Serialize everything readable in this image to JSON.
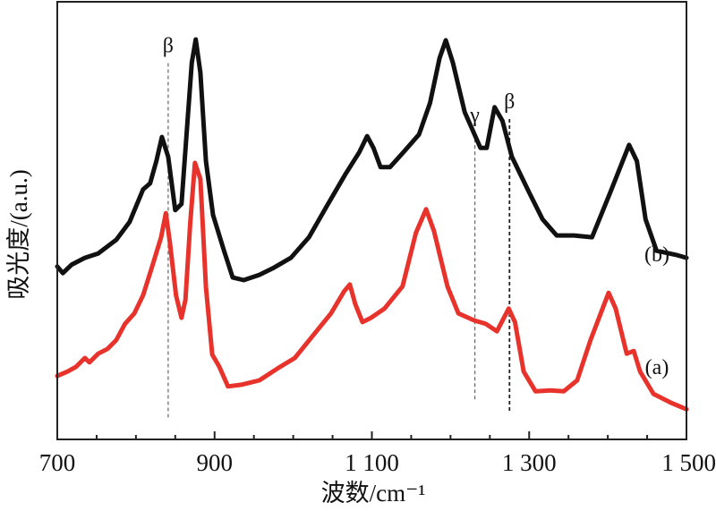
{
  "chart_data": {
    "type": "line",
    "title": "",
    "xlabel": "波数/cm⁻¹",
    "ylabel": "吸光度/(a.u.)",
    "xlim": [
      700,
      1500
    ],
    "ylim": [
      0,
      100
    ],
    "grid": false,
    "x_tick_labels": [
      {
        "value": 700,
        "label": "700"
      },
      {
        "value": 900,
        "label": "900"
      },
      {
        "value": 1100,
        "label": "1 100"
      },
      {
        "value": 1300,
        "label": "1 300"
      },
      {
        "value": 1500,
        "label": "1 500"
      }
    ],
    "x_minor_ticks": [
      750,
      800,
      850,
      950,
      1000,
      1050,
      1150,
      1200,
      1250,
      1350,
      1400,
      1450
    ],
    "series": [
      {
        "name": "(b)",
        "color": "#111111",
        "points": [
          [
            700,
            39.5
          ],
          [
            707,
            38.0
          ],
          [
            718,
            39.9
          ],
          [
            735,
            41.5
          ],
          [
            752,
            42.5
          ],
          [
            775,
            45.6
          ],
          [
            792,
            49.7
          ],
          [
            809,
            57.1
          ],
          [
            818,
            58.5
          ],
          [
            826,
            63.6
          ],
          [
            833,
            69.1
          ],
          [
            841,
            64.6
          ],
          [
            850,
            52.4
          ],
          [
            858,
            53.8
          ],
          [
            866,
            73.8
          ],
          [
            871,
            86.1
          ],
          [
            876,
            91.4
          ],
          [
            882,
            83.8
          ],
          [
            889,
            63.6
          ],
          [
            898,
            51.3
          ],
          [
            912,
            43.1
          ],
          [
            923,
            37.0
          ],
          [
            937,
            36.4
          ],
          [
            957,
            37.6
          ],
          [
            974,
            39.1
          ],
          [
            997,
            41.5
          ],
          [
            1020,
            46.2
          ],
          [
            1043,
            53.4
          ],
          [
            1066,
            60.5
          ],
          [
            1084,
            65.6
          ],
          [
            1094,
            69.3
          ],
          [
            1102,
            66.6
          ],
          [
            1111,
            62.2
          ],
          [
            1123,
            62.2
          ],
          [
            1140,
            65.6
          ],
          [
            1160,
            69.7
          ],
          [
            1174,
            76.9
          ],
          [
            1186,
            87.1
          ],
          [
            1194,
            91.2
          ],
          [
            1203,
            86.1
          ],
          [
            1218,
            74.8
          ],
          [
            1238,
            66.6
          ],
          [
            1246,
            66.6
          ],
          [
            1256,
            75.9
          ],
          [
            1266,
            72.8
          ],
          [
            1278,
            64.6
          ],
          [
            1300,
            56.4
          ],
          [
            1317,
            50.3
          ],
          [
            1335,
            46.6
          ],
          [
            1357,
            46.6
          ],
          [
            1380,
            46.2
          ],
          [
            1403,
            56.4
          ],
          [
            1427,
            67.3
          ],
          [
            1437,
            63.6
          ],
          [
            1448,
            50.3
          ],
          [
            1462,
            43.1
          ],
          [
            1488,
            42.1
          ],
          [
            1500,
            41.5
          ]
        ]
      },
      {
        "name": "(a)",
        "color": "#e8332c",
        "points": [
          [
            700,
            14.5
          ],
          [
            713,
            15.5
          ],
          [
            724,
            16.6
          ],
          [
            735,
            18.6
          ],
          [
            741,
            17.6
          ],
          [
            752,
            19.6
          ],
          [
            764,
            20.7
          ],
          [
            775,
            22.7
          ],
          [
            786,
            26.4
          ],
          [
            798,
            28.8
          ],
          [
            809,
            32.9
          ],
          [
            820,
            39.1
          ],
          [
            832,
            46.2
          ],
          [
            838,
            51.7
          ],
          [
            843,
            45.2
          ],
          [
            851,
            32.9
          ],
          [
            858,
            27.8
          ],
          [
            863,
            31.9
          ],
          [
            869,
            49.3
          ],
          [
            875,
            63.2
          ],
          [
            882,
            59.5
          ],
          [
            889,
            34.8
          ],
          [
            897,
            19.4
          ],
          [
            906,
            16.6
          ],
          [
            917,
            12.1
          ],
          [
            934,
            12.5
          ],
          [
            957,
            13.5
          ],
          [
            980,
            16.2
          ],
          [
            1002,
            18.6
          ],
          [
            1025,
            23.7
          ],
          [
            1048,
            28.8
          ],
          [
            1065,
            33.9
          ],
          [
            1072,
            35.4
          ],
          [
            1079,
            30.9
          ],
          [
            1088,
            26.8
          ],
          [
            1099,
            27.8
          ],
          [
            1116,
            29.9
          ],
          [
            1139,
            35.0
          ],
          [
            1156,
            47.2
          ],
          [
            1169,
            52.6
          ],
          [
            1179,
            47.6
          ],
          [
            1196,
            35.0
          ],
          [
            1210,
            28.8
          ],
          [
            1230,
            27.2
          ],
          [
            1245,
            26.4
          ],
          [
            1259,
            24.7
          ],
          [
            1274,
            29.9
          ],
          [
            1282,
            26.8
          ],
          [
            1293,
            15.5
          ],
          [
            1308,
            11.0
          ],
          [
            1327,
            11.2
          ],
          [
            1344,
            11.0
          ],
          [
            1361,
            13.5
          ],
          [
            1378,
            22.7
          ],
          [
            1401,
            33.5
          ],
          [
            1410,
            29.9
          ],
          [
            1424,
            19.6
          ],
          [
            1433,
            20.2
          ],
          [
            1441,
            15.5
          ],
          [
            1458,
            10.4
          ],
          [
            1480,
            8.4
          ],
          [
            1500,
            6.9
          ]
        ]
      }
    ],
    "annotations": [
      {
        "text": "β",
        "x": 841,
        "line_top": 86,
        "line_bottom": 4.7
      },
      {
        "text": "γ",
        "x": 1231,
        "line_top": 70.1,
        "line_bottom": 8.8
      },
      {
        "text": "β",
        "x": 1275,
        "line_top": 73.2,
        "line_bottom": 6.1
      }
    ],
    "series_labels": [
      {
        "text": "(b)",
        "series": "(b)"
      },
      {
        "text": "(a)",
        "series": "(a)"
      }
    ]
  }
}
